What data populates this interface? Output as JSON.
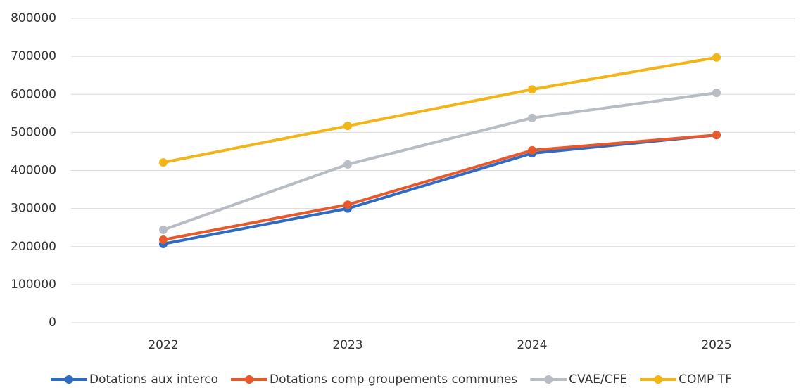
{
  "chart_data": {
    "type": "line",
    "categories": [
      "2022",
      "2023",
      "2024",
      "2025"
    ],
    "series": [
      {
        "name": "Dotations aux interco",
        "color": "#2e6bc4",
        "values": [
          207000,
          300000,
          445000,
          493000
        ]
      },
      {
        "name": "Dotations comp groupements communes",
        "color": "#e8582a",
        "values": [
          218000,
          310000,
          453000,
          493000
        ]
      },
      {
        "name": "CVAE/CFE",
        "color": "#b8bcc4",
        "values": [
          244000,
          416000,
          538000,
          604000
        ]
      },
      {
        "name": "COMP TF",
        "color": "#f2b417",
        "values": [
          421000,
          517000,
          613000,
          697000
        ]
      }
    ],
    "ylim": [
      0,
      800000
    ],
    "yticks": [
      0,
      100000,
      200000,
      300000,
      400000,
      500000,
      600000,
      700000,
      800000
    ],
    "grid": true
  }
}
